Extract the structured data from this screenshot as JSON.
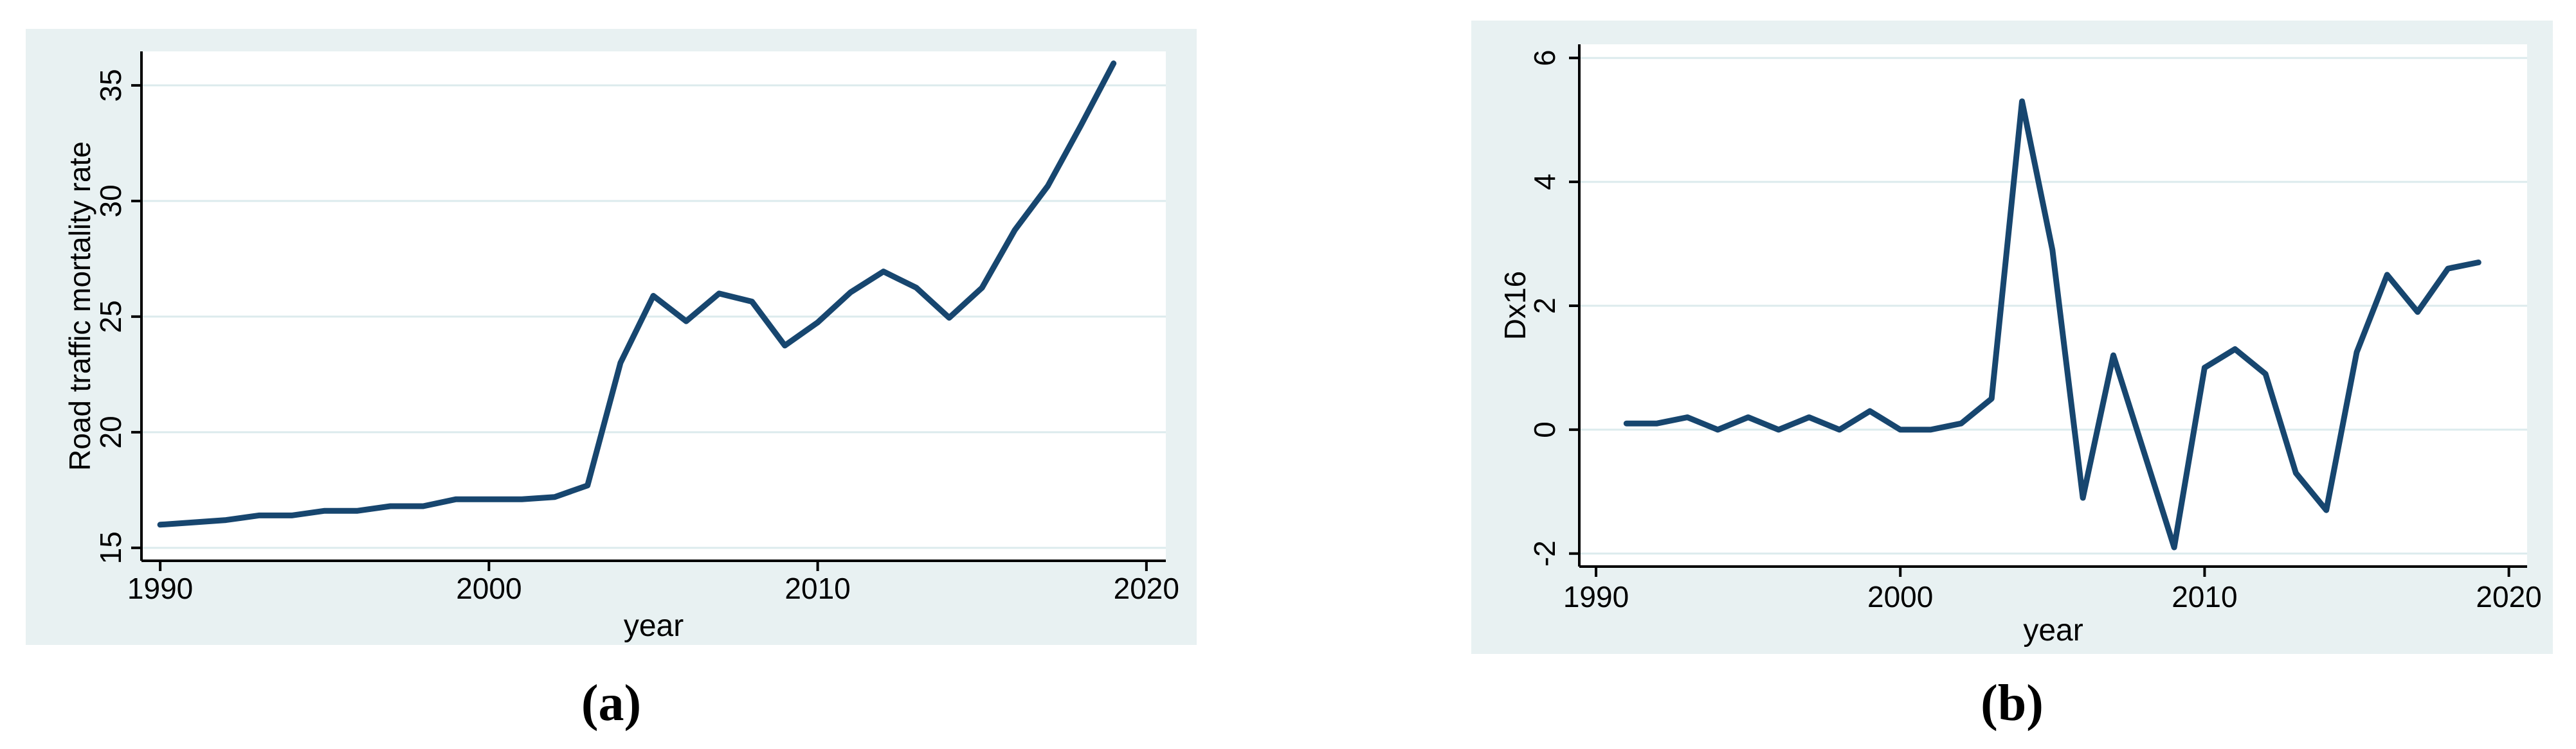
{
  "figure": {
    "description": "Two Stata-style line charts side by side",
    "style": {
      "panel_bg": "#e8f1f2",
      "plot_bg": "#ffffff",
      "grid_color": "#dcebed",
      "axis_color": "#000000",
      "text_color": "#000000",
      "line_color": "#17466f"
    }
  },
  "chart_data": [
    {
      "type": "line",
      "title": "",
      "xlabel": "year",
      "ylabel": "Road traffic mortality rate",
      "caption": "(a)",
      "legend": "none",
      "grid": "horizontal",
      "line_color": "#17466f",
      "x": [
        1990,
        1991,
        1992,
        1993,
        1994,
        1995,
        1996,
        1997,
        1998,
        1999,
        2000,
        2001,
        2002,
        2003,
        2004,
        2005,
        2006,
        2007,
        2008,
        2009,
        2010,
        2011,
        2012,
        2013,
        2014,
        2015,
        2016,
        2017,
        2018,
        2019
      ],
      "values": [
        16.0,
        16.1,
        16.2,
        16.4,
        16.4,
        16.6,
        16.6,
        16.8,
        16.8,
        17.1,
        17.1,
        17.1,
        17.2,
        17.7,
        23.0,
        25.9,
        24.8,
        26.0,
        25.65,
        23.75,
        24.75,
        26.05,
        26.95,
        26.25,
        24.95,
        26.25,
        28.75,
        30.65,
        33.25,
        35.95
      ],
      "xticks": [
        1990,
        2000,
        2010,
        2020
      ],
      "yticks": [
        15,
        20,
        25,
        30,
        35
      ],
      "xlim": [
        1989.43,
        2020.59
      ],
      "ylim": [
        14.44,
        36.47
      ]
    },
    {
      "type": "line",
      "title": "",
      "xlabel": "year",
      "ylabel": "Dx16",
      "caption": "(b)",
      "legend": "none",
      "grid": "horizontal",
      "line_color": "#17466f",
      "x": [
        1991,
        1992,
        1993,
        1994,
        1995,
        1996,
        1997,
        1998,
        1999,
        2000,
        2001,
        2002,
        2003,
        2004,
        2005,
        2006,
        2007,
        2008,
        2009,
        2010,
        2011,
        2012,
        2013,
        2014,
        2015,
        2016,
        2017,
        2018,
        2019
      ],
      "values": [
        0.1,
        0.1,
        0.2,
        0.0,
        0.2,
        0.0,
        0.2,
        0.0,
        0.3,
        0.0,
        0.0,
        0.1,
        0.5,
        5.3,
        2.9,
        -1.1,
        1.2,
        -0.35,
        -1.9,
        1.0,
        1.3,
        0.9,
        -0.7,
        -1.3,
        1.25,
        2.5,
        1.9,
        2.6,
        2.7
      ],
      "xticks": [
        1990,
        2000,
        2010,
        2020
      ],
      "yticks": [
        -2,
        0,
        2,
        4,
        6
      ],
      "xlim": [
        1989.45,
        2020.6
      ],
      "ylim": [
        -2.21,
        6.22
      ]
    }
  ]
}
